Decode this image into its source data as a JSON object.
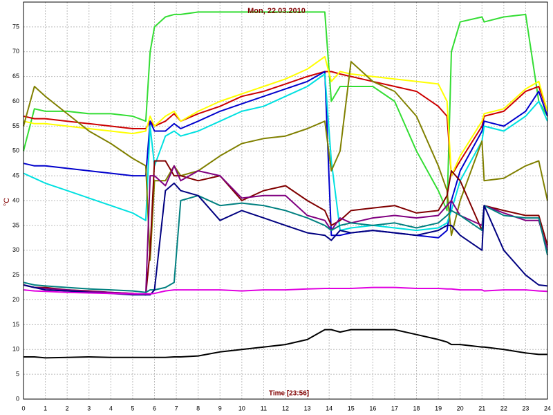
{
  "chart_data": {
    "type": "line",
    "title": "Mon, 22.03.2010",
    "x_label": "Time [23:56]",
    "y_label": "°C",
    "xlim": [
      0,
      24
    ],
    "ylim": [
      0,
      80
    ],
    "xticks": [
      0,
      1,
      2,
      3,
      4,
      5,
      6,
      7,
      8,
      9,
      10,
      11,
      12,
      13,
      14,
      15,
      16,
      17,
      18,
      19,
      20,
      21,
      22,
      23,
      24
    ],
    "yticks": [
      0,
      5,
      10,
      15,
      20,
      25,
      30,
      35,
      40,
      45,
      50,
      55,
      60,
      65,
      70,
      75
    ],
    "grid": true,
    "x": [
      0,
      0.5,
      1,
      2,
      3,
      4,
      5,
      5.6,
      5.8,
      6,
      6.5,
      6.9,
      7.2,
      8,
      9,
      10,
      11,
      12,
      13,
      13.8,
      14.1,
      14.5,
      15,
      16,
      17,
      18,
      19,
      19.4,
      19.6,
      20,
      21,
      21.1,
      22,
      23,
      23.6,
      24
    ],
    "series": [
      {
        "color": "#33dd33",
        "values": [
          50,
          58.5,
          58,
          58,
          57.5,
          57.5,
          57,
          56,
          70,
          75,
          77,
          77.5,
          77.5,
          78,
          78,
          78,
          78,
          78,
          78,
          78,
          60,
          63,
          63,
          63,
          60,
          50,
          42,
          38,
          70,
          76,
          77,
          76,
          77,
          77.5,
          60,
          57
        ]
      },
      {
        "color": "#cc0000",
        "values": [
          57,
          56.5,
          56.5,
          56,
          55.5,
          55,
          54.5,
          54.5,
          56,
          55,
          56,
          57.5,
          56,
          57.5,
          59,
          61,
          62,
          63.5,
          65,
          66,
          66,
          65.5,
          65,
          64,
          63,
          62,
          59,
          57,
          45,
          48,
          55,
          57,
          58,
          62,
          63,
          58
        ]
      },
      {
        "color": "#ffff00",
        "values": [
          56,
          55.5,
          55.5,
          55,
          54.5,
          54,
          53.5,
          54,
          57,
          55,
          57,
          58,
          56,
          58,
          60,
          61.5,
          63,
          64.5,
          66.5,
          69,
          64,
          66,
          65.5,
          65,
          64.5,
          64,
          63.5,
          60,
          45,
          49,
          56,
          57.5,
          58.5,
          62.5,
          64,
          58
        ]
      },
      {
        "color": "#0000cc",
        "values": [
          47.5,
          47,
          47,
          46.5,
          46,
          45.5,
          45,
          45,
          56,
          54,
          54,
          55.5,
          54.5,
          56,
          58,
          59.5,
          61,
          62.5,
          64,
          66,
          33,
          33,
          33.5,
          34,
          33.5,
          33,
          32.5,
          34,
          40,
          46,
          54,
          56,
          55,
          58,
          62,
          57
        ]
      },
      {
        "color": "#00e0e0",
        "values": [
          45.5,
          44.5,
          43.5,
          42,
          40.5,
          39,
          37.5,
          36,
          55,
          47,
          53,
          54,
          53,
          54,
          56,
          58,
          59,
          61,
          63,
          65.5,
          48,
          34,
          34.5,
          35,
          34.5,
          34,
          34.5,
          35.5,
          38,
          44,
          52,
          55,
          54,
          57,
          60,
          56
        ]
      },
      {
        "color": "#808000",
        "values": [
          55,
          63,
          61,
          57.5,
          54,
          51.5,
          48.5,
          47,
          28,
          44,
          44,
          47,
          45,
          46,
          49,
          51.5,
          52.5,
          53,
          54.5,
          56,
          46,
          50,
          68,
          64,
          62,
          57,
          47,
          42,
          33,
          40,
          52,
          44,
          44.5,
          47,
          48,
          40
        ]
      },
      {
        "color": "#800000",
        "values": [
          23,
          22.5,
          22.5,
          22,
          21.8,
          21.5,
          21.3,
          21,
          30,
          48,
          48,
          45,
          45,
          44,
          45,
          40,
          42,
          43,
          40,
          38,
          35,
          36,
          38,
          38.5,
          39,
          37.5,
          38,
          41,
          46,
          44,
          34,
          39,
          38,
          37,
          37,
          31
        ]
      },
      {
        "color": "#800080",
        "values": [
          23,
          22.5,
          22.3,
          22,
          21.7,
          21.5,
          21.3,
          21,
          45,
          45,
          43,
          47,
          44,
          46,
          45,
          40.5,
          41,
          41,
          37,
          36,
          34,
          36.5,
          35.5,
          36.5,
          37,
          36.5,
          37,
          39,
          40,
          37,
          35,
          39,
          37.5,
          36,
          36,
          30
        ]
      },
      {
        "color": "#008080",
        "values": [
          23.5,
          23,
          22.8,
          22.5,
          22.2,
          22,
          21.8,
          21.5,
          22,
          22,
          22.5,
          23.5,
          40,
          41,
          39,
          39.5,
          39,
          38,
          36.5,
          35,
          34,
          35,
          35.5,
          35,
          35.5,
          34.5,
          35.5,
          37,
          38,
          37,
          34,
          39,
          37,
          36.5,
          36.5,
          29
        ]
      },
      {
        "color": "#000080",
        "values": [
          23,
          22.5,
          22,
          21.8,
          21.5,
          21.3,
          21,
          21,
          21,
          22,
          42,
          43.5,
          42,
          41,
          36,
          38,
          36.5,
          35,
          33.5,
          33,
          32,
          34,
          33.5,
          34,
          33.5,
          33,
          34,
          35,
          35,
          33,
          30,
          39,
          30,
          25,
          23,
          22.8
        ]
      },
      {
        "color": "#e000e0",
        "values": [
          22,
          21.8,
          21.7,
          21.5,
          21.4,
          21.3,
          21.2,
          21.2,
          21.2,
          21.3,
          21.8,
          22,
          22,
          22,
          22,
          21.8,
          22,
          22,
          22.2,
          22.3,
          22.3,
          22.3,
          22.3,
          22.5,
          22.5,
          22.3,
          22.3,
          22.2,
          22.2,
          22,
          22,
          21.8,
          22,
          22,
          21.8,
          21.7
        ]
      },
      {
        "color": "#000000",
        "values": [
          8.5,
          8.5,
          8.3,
          8.4,
          8.5,
          8.4,
          8.4,
          8.4,
          8.4,
          8.4,
          8.4,
          8.5,
          8.5,
          8.7,
          9.5,
          10,
          10.5,
          11,
          12,
          14,
          14,
          13.5,
          14,
          14,
          14,
          13,
          12,
          11.5,
          11,
          11,
          10.5,
          10.5,
          10,
          9.3,
          9,
          9
        ]
      }
    ]
  }
}
